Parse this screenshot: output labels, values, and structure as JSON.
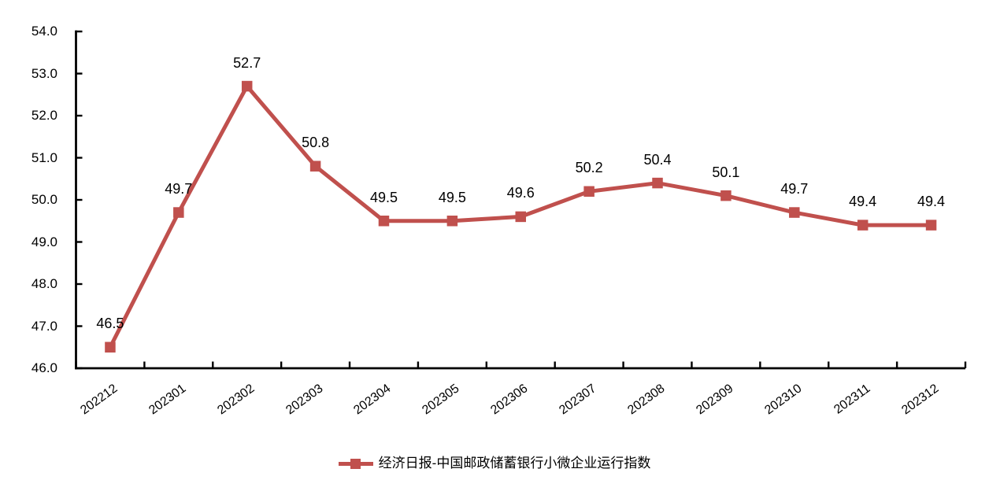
{
  "chart_data": {
    "type": "line",
    "title": "",
    "xlabel": "",
    "ylabel": "",
    "categories": [
      "202212",
      "202301",
      "202302",
      "202303",
      "202304",
      "202305",
      "202306",
      "202307",
      "202308",
      "202309",
      "202310",
      "202311",
      "202312"
    ],
    "series": [
      {
        "name": "经济日报-中国邮政储蓄银行小微企业运行指数",
        "color": "#C0504D",
        "marker": "square",
        "values": [
          46.5,
          49.7,
          52.7,
          50.8,
          49.5,
          49.5,
          49.6,
          50.2,
          50.4,
          50.1,
          49.7,
          49.4,
          49.4
        ]
      }
    ],
    "data_labels": [
      "46.5",
      "49.7",
      "52.7",
      "50.8",
      "49.5",
      "49.5",
      "49.6",
      "50.2",
      "50.4",
      "50.1",
      "49.7",
      "49.4",
      "49.4"
    ],
    "ylim": [
      46.0,
      54.0
    ],
    "ytick_step": 1.0,
    "yticks": [
      46.0,
      47.0,
      48.0,
      49.0,
      50.0,
      51.0,
      52.0,
      53.0,
      54.0
    ],
    "ytick_labels": [
      "46.0",
      "47.0",
      "48.0",
      "49.0",
      "50.0",
      "51.0",
      "52.0",
      "53.0",
      "54.0"
    ],
    "grid": false,
    "legend_position": "bottom",
    "axis_color": "#000000",
    "text_color": "#000000",
    "background_color": "#FFFFFF"
  }
}
